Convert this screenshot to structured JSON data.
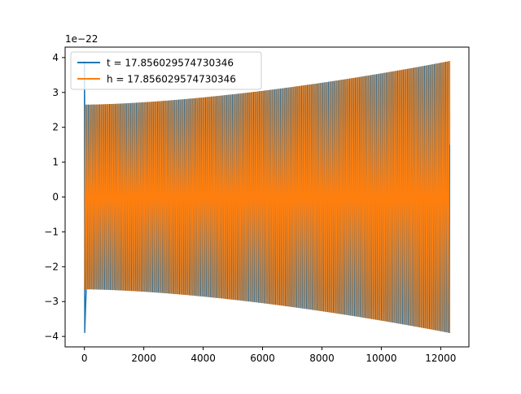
{
  "chart_data": {
    "type": "line",
    "title": "",
    "xlabel": "",
    "ylabel": "",
    "xlim": [
      -650,
      12950
    ],
    "ylim": [
      -4.3e-22,
      4.3e-22
    ],
    "offset_text": "1e−22",
    "xticks": [
      0,
      2000,
      4000,
      6000,
      8000,
      10000,
      12000
    ],
    "xtick_labels": [
      "0",
      "2000",
      "4000",
      "6000",
      "8000",
      "10000",
      "12000"
    ],
    "yticks": [
      -4e-22,
      -3e-22,
      -2e-22,
      -1e-22,
      0,
      1e-22,
      2e-22,
      3e-22,
      4e-22
    ],
    "ytick_labels": [
      "−4",
      "−3",
      "−2",
      "−1",
      "0",
      "1",
      "2",
      "3",
      "4"
    ],
    "grid": false,
    "legend_position": "upper-left",
    "series": [
      {
        "name": "t = 17.856029574730346",
        "color": "#1f77b4",
        "x_range": [
          0,
          12300
        ],
        "amplitude_start": 2.65e-22,
        "amplitude_end": 3.9e-22,
        "initial_spike": [
          3.9e-22,
          -3.9e-22
        ]
      },
      {
        "name": "h = 17.856029574730346",
        "color": "#ff7f0e",
        "x_range": [
          0,
          12300
        ],
        "amplitude_start": 2.65e-22,
        "amplitude_end": 3.9e-22
      }
    ]
  }
}
